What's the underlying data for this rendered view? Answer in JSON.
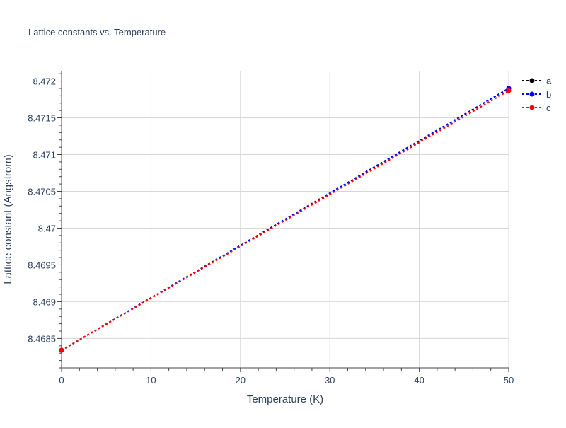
{
  "chart_data": {
    "type": "line",
    "title": "Lattice constants vs. Temperature",
    "xlabel": "Temperature (K)",
    "ylabel": "Lattice constant (Angstrom)",
    "xlim": [
      0,
      50
    ],
    "ylim": [
      8.4681,
      8.47214
    ],
    "x_ticks": [
      "0",
      "10",
      "20",
      "30",
      "40",
      "50"
    ],
    "x_tick_values": [
      0,
      10,
      20,
      30,
      40,
      50
    ],
    "y_ticks": [
      "8.4685",
      "8.469",
      "8.4695",
      "8.47",
      "8.4705",
      "8.471",
      "8.4715",
      "8.472"
    ],
    "y_tick_values": [
      8.4685,
      8.469,
      8.4695,
      8.47,
      8.4705,
      8.471,
      8.4715,
      8.472
    ],
    "grid": true,
    "legend_position": "top-right",
    "x": [
      0,
      50
    ],
    "series": [
      {
        "name": "a",
        "color": "#000000",
        "values": [
          8.46834,
          8.4719
        ]
      },
      {
        "name": "b",
        "color": "#0000ff",
        "values": [
          8.46834,
          8.4719
        ]
      },
      {
        "name": "c",
        "color": "#ff0000",
        "values": [
          8.46834,
          8.47187
        ]
      }
    ]
  }
}
